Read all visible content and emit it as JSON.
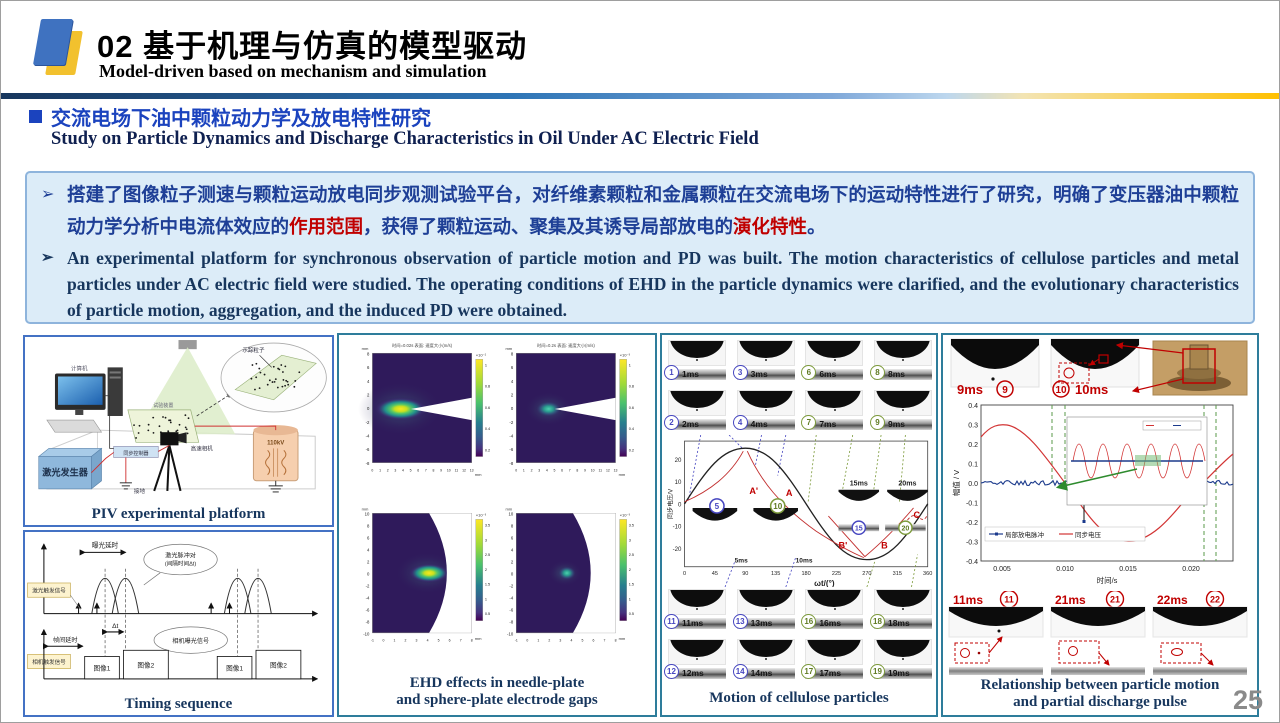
{
  "slide": {
    "header": {
      "title": "02 基于机理与仿真的模型驱动",
      "subtitle": "Model-driven based on mechanism and simulation"
    },
    "section": {
      "title_zh": "交流电场下油中颗粒动力学及放电特性研究",
      "title_en": "Study on Particle Dynamics and Discharge Characteristics in Oil Under AC Electric Field"
    },
    "summary": {
      "bullet_zh": {
        "part1": "搭建了图像粒子测速与颗粒运动放电同步观测试验平台，对纤维素颗粒和金属颗粒在交流电场下的运动特性进行了研究，明确了变压器油中颗粒动力学分析中电流体效应的",
        "red1": "作用范围",
        "part2": "，获得了颗粒运动、聚集及其诱导局部放电的",
        "red2": "演化特性",
        "part3": "。"
      },
      "bullet_en": "An experimental platform for synchronous observation of particle motion and PD was built. The motion characteristics of cellulose particles and metal particles under AC electric field were studied. The operating conditions of EHD in the particle dynamics were clarified, and the evolutionary characteristics of particle motion, aggregation, and the induced PD were obtained."
    },
    "page_number": "25"
  },
  "colors": {
    "section_blue": "#1b43be",
    "text_navy": "#17365d",
    "zh_blue": "#1e3f96",
    "highlight_red": "#c00000",
    "panel_teal": "#2e7d9b",
    "panel_blue": "#4472c4",
    "bar_gold": "#ffc000"
  },
  "panels": {
    "piv": {
      "caption": "PIV experimental platform",
      "labels": {
        "computer": "计算机",
        "controller": "同步控制器",
        "camera": "高速相机",
        "laser": "激光发生器",
        "cell": "试验装置",
        "tracer": "示踪粒子",
        "hv": "110kV",
        "ground": "接地"
      }
    },
    "timing": {
      "caption": "Timing sequence",
      "labels": {
        "exposure": "曝光延时",
        "pair": "激光脉冲对",
        "pair_sub": "(间隔时间Δt)",
        "dt": "Δt",
        "frame_gap": "帧间延时",
        "laser_trig": "激光触发信号",
        "cam_trig": "相机触发信号",
        "cam_exp": "相机曝光信号",
        "f1": "图像1",
        "f2": "图像2",
        "f3": "图像1",
        "f4": "图像2"
      }
    },
    "ehd": {
      "caption1": "EHD effects in needle-plate",
      "caption2": "and sphere-plate electrode gaps",
      "needle": {
        "title_left": "时间=0.02s 表面: 速度大小(m/s)",
        "title_right": "时间=0.2s 表面: 速度大小(m/s)",
        "yticks": [
          "8",
          "6",
          "4",
          "2",
          "0",
          "-2",
          "-4",
          "-6",
          "-8"
        ],
        "xticks": [
          "0",
          "1",
          "2",
          "3",
          "4",
          "5",
          "6",
          "7",
          "8",
          "9",
          "10",
          "11",
          "12",
          "13"
        ],
        "unit": "mm",
        "cb_left_exp": "×10⁻²",
        "cb_left": [
          "1",
          "0.8",
          "0.6",
          "0.4",
          "0.2"
        ],
        "cb_right_exp": "×10⁻³",
        "cb_right": [
          "1",
          "0.8",
          "0.6",
          "0.4",
          "0.2"
        ]
      },
      "sphere": {
        "yticks": [
          "10",
          "8",
          "6",
          "4",
          "2",
          "0",
          "-2",
          "-4",
          "-6",
          "-8",
          "-10"
        ],
        "xticks": [
          "-1",
          "0",
          "1",
          "2",
          "3",
          "4",
          "5",
          "6",
          "7",
          "8"
        ],
        "unit": "mm",
        "cb_exp": "×10⁻³",
        "cb": [
          "3.5",
          "3",
          "2.5",
          "2",
          "1.5",
          "1",
          "0.5"
        ]
      }
    },
    "cellulose": {
      "caption": "Motion of cellulose particles",
      "rows": [
        [
          {
            "n": "1",
            "t": "1ms",
            "c": "b"
          },
          {
            "n": "3",
            "t": "3ms",
            "c": "b"
          },
          {
            "n": "6",
            "t": "6ms",
            "c": "g"
          },
          {
            "n": "8",
            "t": "8ms",
            "c": "g"
          }
        ],
        [
          {
            "n": "2",
            "t": "2ms",
            "c": "b"
          },
          {
            "n": "4",
            "t": "4ms",
            "c": "b"
          },
          {
            "n": "7",
            "t": "7ms",
            "c": "g"
          },
          {
            "n": "9",
            "t": "9ms",
            "c": "g"
          }
        ],
        [
          {
            "n": "11",
            "t": "11ms",
            "c": "b"
          },
          {
            "n": "13",
            "t": "13ms",
            "c": "b"
          },
          {
            "n": "16",
            "t": "16ms",
            "c": "g"
          },
          {
            "n": "18",
            "t": "18ms",
            "c": "g"
          }
        ],
        [
          {
            "n": "12",
            "t": "12ms",
            "c": "b"
          },
          {
            "n": "14",
            "t": "14ms",
            "c": "b"
          },
          {
            "n": "17",
            "t": "17ms",
            "c": "g"
          },
          {
            "n": "19",
            "t": "19ms",
            "c": "g"
          }
        ]
      ],
      "plot": {
        "ylabel": "同步电压/V",
        "yticks": [
          "20",
          "10",
          "0",
          "-10",
          "-20"
        ],
        "xticks": [
          "0",
          "45",
          "90",
          "135",
          "180",
          "225",
          "270",
          "315",
          "360"
        ],
        "xlabel": "ωt/(°)",
        "a1": "A'",
        "a2": "A",
        "b1": "B'",
        "b2": "B",
        "cl": "C",
        "t5": "5ms",
        "t10": "10ms",
        "t15": "15ms",
        "t20": "20ms",
        "inplot": [
          {
            "n": "5",
            "c": "b"
          },
          {
            "n": "10",
            "c": "g"
          },
          {
            "n": "15",
            "c": "b"
          },
          {
            "n": "20",
            "c": "g"
          }
        ]
      }
    },
    "pd": {
      "caption1": "Relationship between particle motion",
      "caption2": "and partial discharge pulse",
      "top_frames": [
        {
          "t": "9ms",
          "n": "9"
        },
        {
          "t": "10ms",
          "n": "10"
        }
      ],
      "bottom_frames": [
        {
          "t": "11ms",
          "n": "11"
        },
        {
          "t": "21ms",
          "n": "21"
        },
        {
          "t": "22ms",
          "n": "22"
        }
      ],
      "plot": {
        "ylabel": "幅值 / V",
        "yticks": [
          "0.4",
          "0.3",
          "0.2",
          "0.1",
          "0.0",
          "-0.1",
          "-0.2",
          "-0.3",
          "-0.4"
        ],
        "xticks": [
          "0.005",
          "0.010",
          "0.015",
          "0.020"
        ],
        "xlabel": "时间/s",
        "legend_pd": "局部放电脉冲",
        "legend_v": "同步电压"
      }
    }
  }
}
